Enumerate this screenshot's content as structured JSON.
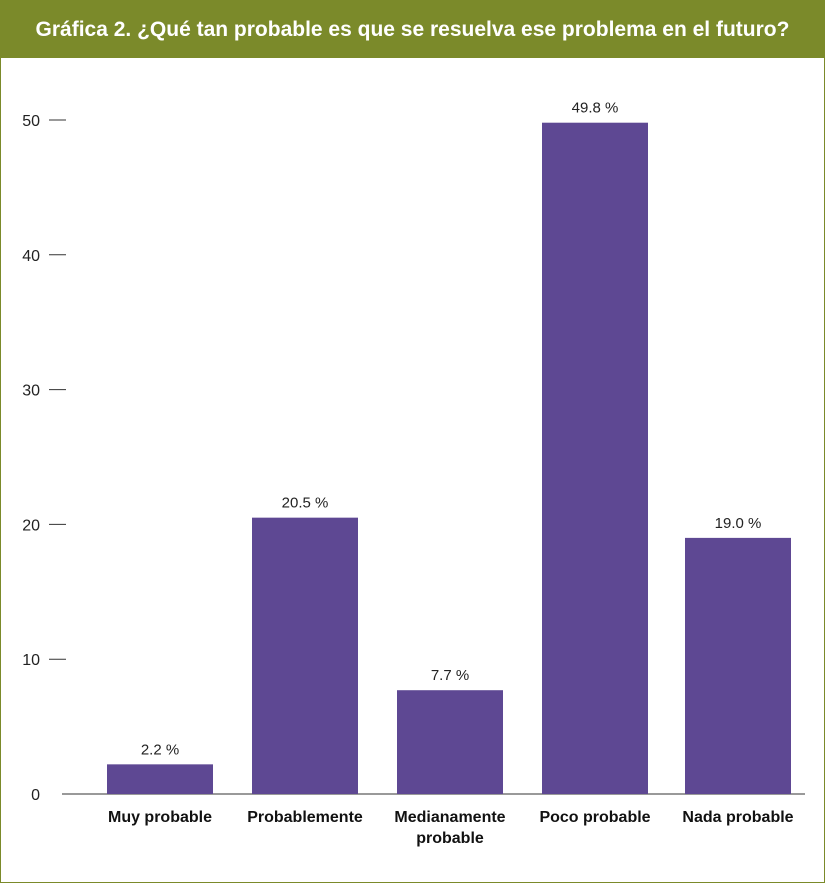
{
  "chart_data": {
    "type": "bar",
    "title": "Gráfica 2. ¿Qué tan probable es que se resuelva ese problema en el futuro?",
    "categories": [
      [
        "Muy probable"
      ],
      [
        "Probablemente"
      ],
      [
        "Medianamente",
        "probable"
      ],
      [
        "Poco probable"
      ],
      [
        "Nada probable"
      ]
    ],
    "values": [
      2.2,
      20.5,
      7.7,
      49.8,
      19.0
    ],
    "value_labels": [
      "2.2 %",
      "20.5 %",
      "7.7 %",
      "49.8 %",
      "19.0 %"
    ],
    "yticks": [
      "0",
      "10",
      "20",
      "30",
      "40",
      "50"
    ],
    "ylim": [
      0,
      50
    ],
    "grid": false,
    "colors": {
      "bar": "#5e4893",
      "header": "#7b8a2a",
      "axis": "#333333"
    }
  }
}
